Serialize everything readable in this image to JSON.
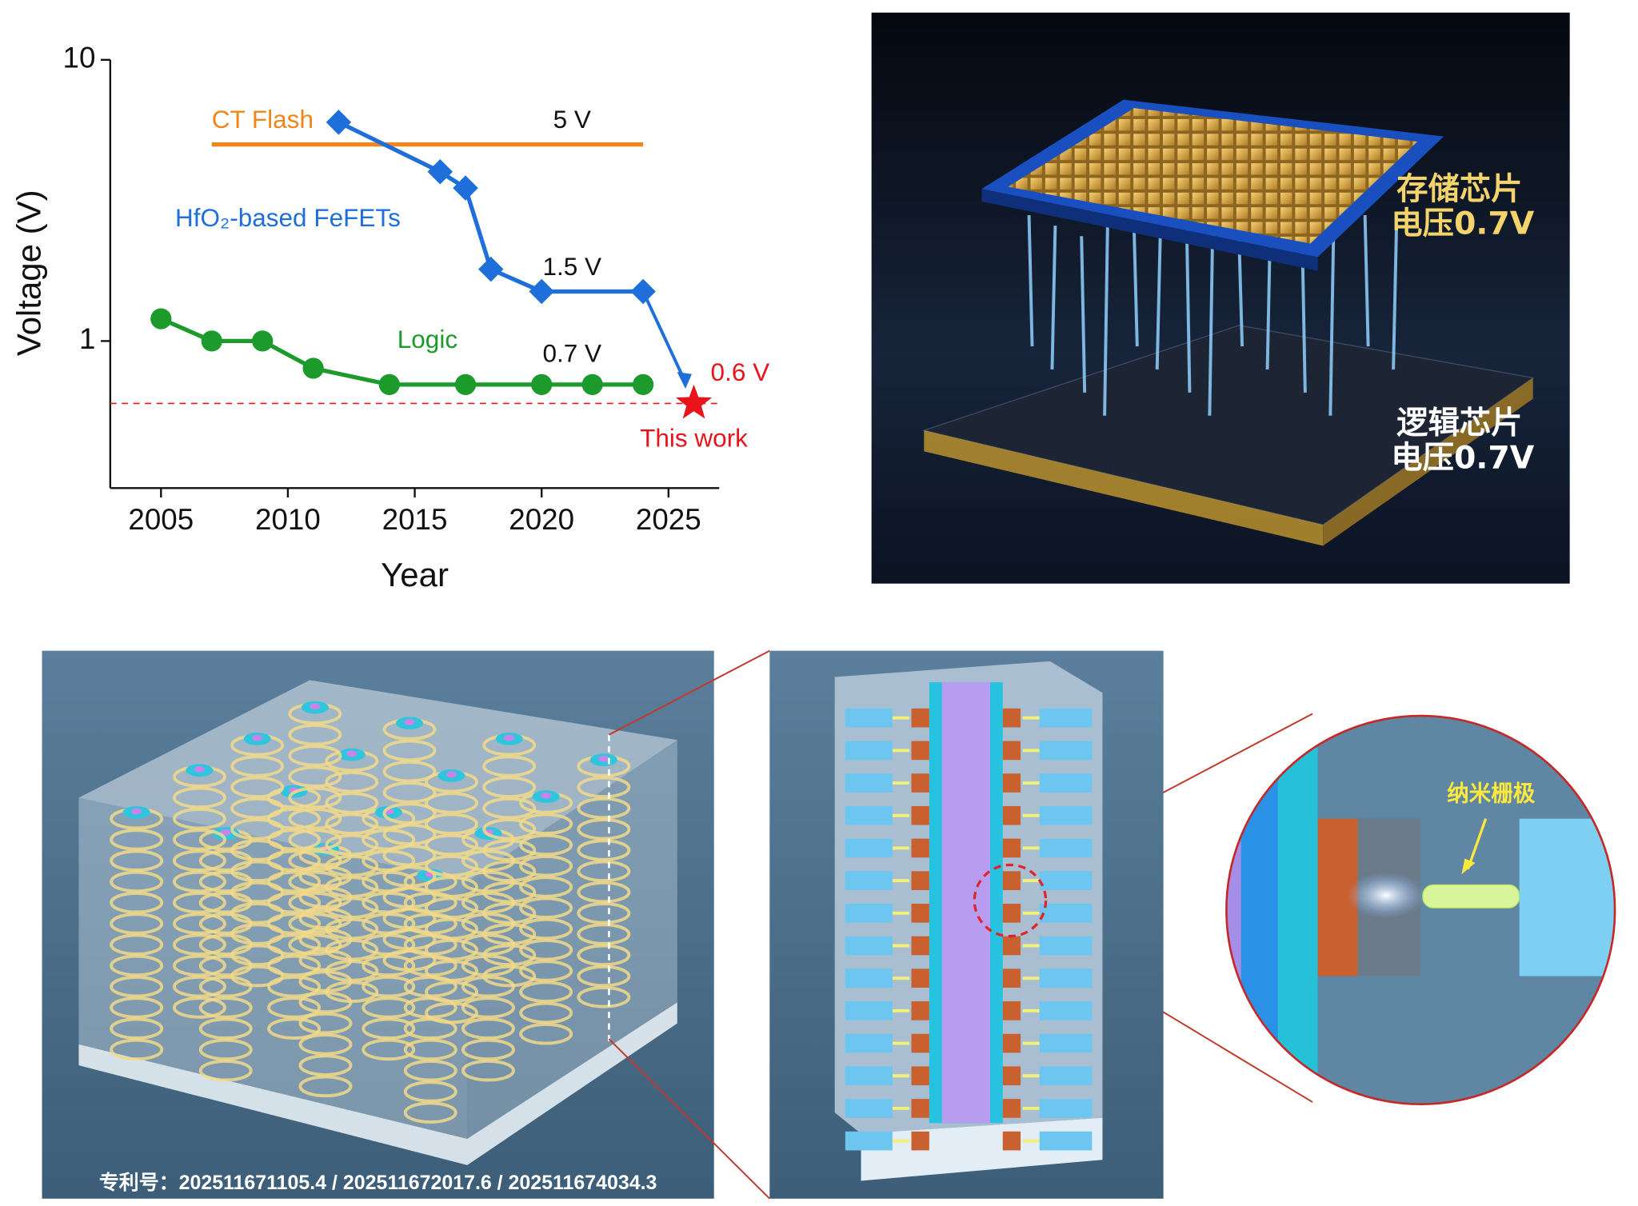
{
  "chart_data": {
    "type": "line",
    "x_label": "Year",
    "y_label": "Voltage (V)",
    "yscale": "log",
    "xlim": [
      2003,
      2027
    ],
    "xticks": [
      2005,
      2010,
      2015,
      2020,
      2025
    ],
    "ylim": [
      0.3,
      10
    ],
    "yticks": [
      1,
      10
    ],
    "reference_line": 0.6,
    "series": [
      {
        "name": "CT Flash",
        "color": "#f0861a",
        "marker": "none",
        "x": [
          2007,
          2024
        ],
        "values": [
          5,
          5
        ]
      },
      {
        "name": "HfO₂-based FeFETs",
        "color": "#1e6fd9",
        "marker": "diamond",
        "x": [
          2012,
          2016,
          2017,
          2018,
          2020,
          2024
        ],
        "values": [
          6,
          4,
          3.5,
          1.8,
          1.5,
          1.5
        ]
      },
      {
        "name": "Logic",
        "color": "#1c9a2c",
        "marker": "circle",
        "x": [
          2005,
          2007,
          2009,
          2011,
          2014,
          2017,
          2020,
          2022,
          2024
        ],
        "values": [
          1.2,
          1,
          1,
          0.8,
          0.7,
          0.7,
          0.7,
          0.7,
          0.7
        ]
      },
      {
        "name": "This work",
        "color": "#e8141c",
        "marker": "star",
        "x": [
          2026
        ],
        "values": [
          0.6
        ]
      }
    ],
    "annotations": [
      "5 V",
      "1.5 V",
      "0.7 V",
      "0.6 V"
    ]
  },
  "memory_chip": {
    "title": "存储芯片",
    "voltage": "电压0.7V"
  },
  "logic_chip": {
    "title": "逻辑芯片",
    "voltage": "电压0.7V"
  },
  "patent": "专利号：202511671105.4 / 202511672017.6 / 202511674034.3",
  "gate_label": "纳米栅极"
}
